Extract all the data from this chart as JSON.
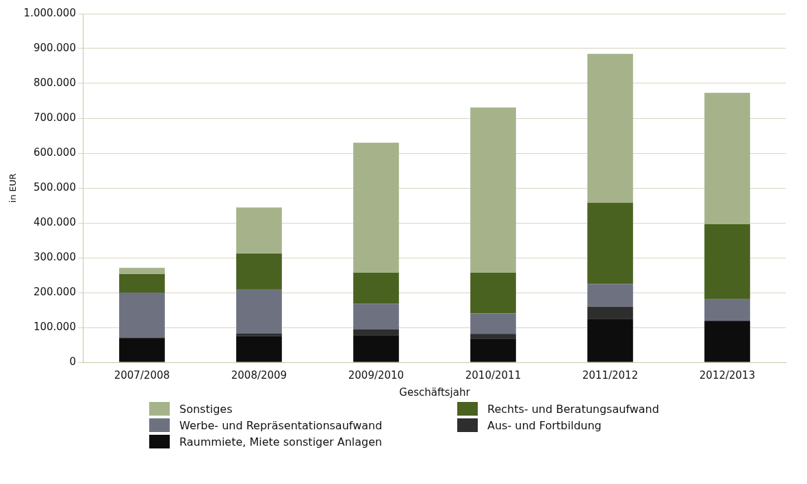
{
  "chart_data": {
    "type": "bar",
    "stacked": true,
    "xlabel": "Geschäftsjahr",
    "ylabel": "in EUR",
    "categories": [
      "2007/2008",
      "2008/2009",
      "2009/2010",
      "2010/2011",
      "2011/2012",
      "2012/2013"
    ],
    "series": [
      {
        "name": "Raummiete, Miete sonstiger Anlagen",
        "color": "#0d0d0d",
        "values": [
          70000,
          75000,
          78000,
          68000,
          125000,
          119000
        ]
      },
      {
        "name": "Aus- und Fortbildung",
        "color": "#2e2e2e",
        "values": [
          0,
          8000,
          17000,
          14000,
          35000,
          0
        ]
      },
      {
        "name": "Werbe- und Repräsentationsaufwand",
        "color": "#6e7280",
        "values": [
          130000,
          127000,
          73000,
          58000,
          65000,
          62000
        ]
      },
      {
        "name": "Rechts- und Beratungsaufwand",
        "color": "#4a6220",
        "values": [
          53000,
          102000,
          89000,
          117000,
          233000,
          215000
        ]
      },
      {
        "name": "Sonstiges",
        "color": "#a6b38a",
        "values": [
          18000,
          132000,
          373000,
          474000,
          427000,
          377000
        ]
      }
    ],
    "ylim": [
      0,
      1000000
    ],
    "yticks": [
      {
        "value": 0,
        "label": "0"
      },
      {
        "value": 100000,
        "label": "100.000"
      },
      {
        "value": 200000,
        "label": "200.000"
      },
      {
        "value": 300000,
        "label": "300.000"
      },
      {
        "value": 400000,
        "label": "400.000"
      },
      {
        "value": 500000,
        "label": "500.000"
      },
      {
        "value": 600000,
        "label": "600.000"
      },
      {
        "value": 700000,
        "label": "700.000"
      },
      {
        "value": 800000,
        "label": "800.000"
      },
      {
        "value": 900000,
        "label": "900.000"
      },
      {
        "value": 1000000,
        "label": "1.000.000"
      }
    ],
    "grid": "y",
    "legend": "bottom"
  }
}
